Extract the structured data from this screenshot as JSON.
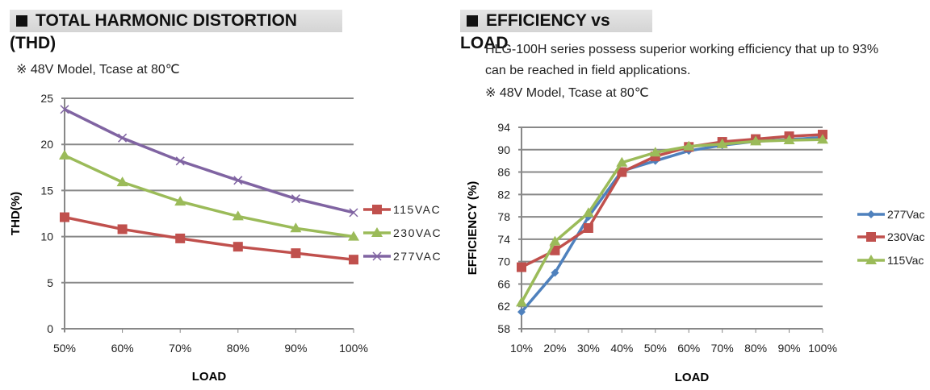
{
  "left": {
    "header": "TOTAL HARMONIC DISTORTION (THD)",
    "note": "※ 48V Model, Tcase at 80℃"
  },
  "right": {
    "header": "EFFICIENCY vs LOAD",
    "desc1": "HLG-100H series possess superior working efficiency that up to 93%",
    "desc2": "can be reached in field applications.",
    "note": "※ 48V Model, Tcase at 80℃"
  },
  "chart_data": [
    {
      "type": "line",
      "title": "",
      "xlabel": "LOAD",
      "ylabel": "THD(%)",
      "ylim": [
        0,
        25
      ],
      "yticks": [
        0,
        5,
        10,
        15,
        20,
        25
      ],
      "grid": true,
      "legend": "right",
      "categories": [
        "50%",
        "60%",
        "70%",
        "80%",
        "90%",
        "100%"
      ],
      "series": [
        {
          "name": "115VAC",
          "color": "#c0504d",
          "marker": "square",
          "values": [
            12.1,
            10.8,
            9.8,
            8.9,
            8.2,
            7.5
          ]
        },
        {
          "name": "230VAC",
          "color": "#9bbb59",
          "marker": "triangle",
          "values": [
            18.8,
            15.9,
            13.8,
            12.2,
            10.9,
            10.0
          ]
        },
        {
          "name": "277VAC",
          "color": "#8064a2",
          "marker": "x",
          "values": [
            23.8,
            20.7,
            18.2,
            16.1,
            14.1,
            12.6
          ]
        }
      ]
    },
    {
      "type": "line",
      "title": "",
      "xlabel": "LOAD",
      "ylabel": "EFFICIENCY (%)",
      "ylim": [
        58,
        94
      ],
      "yticks": [
        58,
        62,
        66,
        70,
        74,
        78,
        82,
        86,
        90,
        94
      ],
      "grid": true,
      "legend": "right",
      "categories": [
        "10%",
        "20%",
        "30%",
        "40%",
        "50%",
        "60%",
        "70%",
        "80%",
        "90%",
        "100%"
      ],
      "series": [
        {
          "name": "277Vac",
          "color": "#4f81bd",
          "marker": "diamond",
          "values": [
            61,
            68,
            78,
            86.2,
            88,
            89.8,
            90.8,
            91.5,
            91.8,
            92.2
          ]
        },
        {
          "name": "230Vac",
          "color": "#c0504d",
          "marker": "square",
          "values": [
            69,
            72,
            76,
            86,
            88.8,
            90.5,
            91.4,
            91.9,
            92.4,
            92.7
          ]
        },
        {
          "name": "115Vac",
          "color": "#9bbb59",
          "marker": "triangle",
          "values": [
            62.7,
            73.6,
            78.7,
            87.7,
            89.5,
            90.6,
            91,
            91.5,
            91.7,
            91.8
          ]
        }
      ]
    }
  ]
}
